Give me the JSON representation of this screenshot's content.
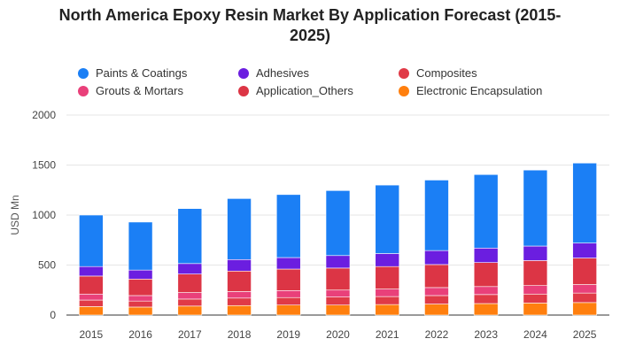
{
  "chart_data": {
    "type": "bar",
    "stacked": true,
    "title_line1": "North America Epoxy Resin Market By Application Forecast (2015-",
    "title_line2": "2025)",
    "ylabel": "USD Mn",
    "xlabel": "",
    "ylim": [
      0,
      2000
    ],
    "yticks": [
      0,
      500,
      1000,
      1500,
      2000
    ],
    "grid": true,
    "legend_position": "top",
    "categories": [
      "2015",
      "2016",
      "2017",
      "2018",
      "2019",
      "2020",
      "2021",
      "2022",
      "2023",
      "2024",
      "2025"
    ],
    "series": [
      {
        "name": "Electronic Encapsulation",
        "color": "#ff7f0e",
        "values": [
          85,
          80,
          90,
          95,
          100,
          100,
          105,
          110,
          115,
          120,
          125
        ]
      },
      {
        "name": "Composites",
        "color": "#e03a47",
        "values": [
          65,
          60,
          70,
          75,
          75,
          80,
          80,
          85,
          90,
          90,
          95
        ]
      },
      {
        "name": "Grouts & Mortars",
        "color": "#e9407a",
        "values": [
          60,
          55,
          65,
          65,
          70,
          70,
          75,
          80,
          80,
          85,
          85
        ]
      },
      {
        "name": "Application_Others",
        "color": "#dc3545",
        "values": [
          180,
          165,
          185,
          205,
          215,
          220,
          225,
          230,
          240,
          250,
          265
        ]
      },
      {
        "name": "Adhesives",
        "color": "#6b1ee0",
        "values": [
          95,
          90,
          105,
          115,
          115,
          125,
          130,
          140,
          145,
          145,
          150
        ]
      },
      {
        "name": "Paints & Coatings",
        "color": "#1b7ff5",
        "values": [
          515,
          480,
          550,
          610,
          630,
          650,
          685,
          705,
          735,
          760,
          800
        ]
      }
    ],
    "legend": [
      {
        "name": "Paints & Coatings",
        "color": "#1b7ff5"
      },
      {
        "name": "Adhesives",
        "color": "#6b1ee0"
      },
      {
        "name": "Composites",
        "color": "#e03a47"
      },
      {
        "name": "Grouts & Mortars",
        "color": "#e9407a"
      },
      {
        "name": "Application_Others",
        "color": "#dc3545"
      },
      {
        "name": "Electronic Encapsulation",
        "color": "#ff7f0e"
      }
    ]
  }
}
